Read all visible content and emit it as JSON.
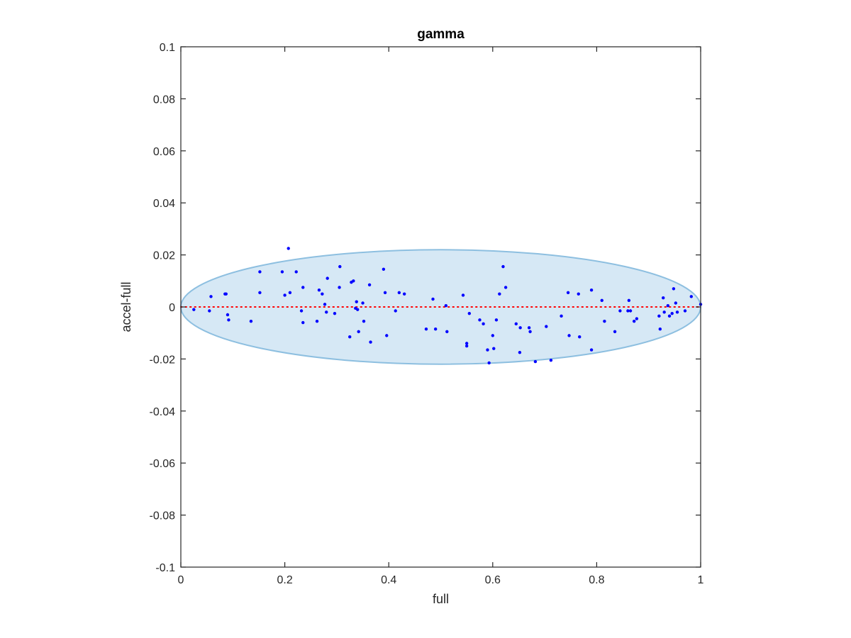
{
  "chart_data": {
    "type": "scatter",
    "title": "gamma",
    "xlabel": "full",
    "ylabel": "accel-full",
    "xlim": [
      0,
      1
    ],
    "ylim": [
      -0.1,
      0.1
    ],
    "xticks": [
      0,
      0.2,
      0.4,
      0.6,
      0.8,
      1
    ],
    "xtick_labels": [
      "0",
      "0.2",
      "0.4",
      "0.6",
      "0.8",
      "1"
    ],
    "yticks": [
      -0.1,
      -0.08,
      -0.06,
      -0.04,
      -0.02,
      0,
      0.02,
      0.04,
      0.06,
      0.08,
      0.1
    ],
    "ytick_labels": [
      "-0.1",
      "-0.08",
      "-0.06",
      "-0.04",
      "-0.02",
      "0",
      "0.02",
      "0.04",
      "0.06",
      "0.08",
      "0.1"
    ],
    "grid": false,
    "reference_line": {
      "y": 0,
      "color": "#ff0000",
      "style": "dotted"
    },
    "ellipse": {
      "cx": 0.5,
      "cy": 0,
      "rx": 0.5,
      "ry": 0.022,
      "fill": "#d6e8f5",
      "stroke": "#8dbfe0"
    },
    "series": [
      {
        "color": "#0000ff",
        "points": [
          [
            0.025,
            -0.001
          ],
          [
            0.055,
            -0.0015
          ],
          [
            0.058,
            0.004
          ],
          [
            0.085,
            0.005
          ],
          [
            0.087,
            0.005
          ],
          [
            0.09,
            -0.003
          ],
          [
            0.092,
            -0.005
          ],
          [
            0.135,
            -0.0055
          ],
          [
            0.152,
            0.0135
          ],
          [
            0.152,
            0.0055
          ],
          [
            0.195,
            0.0135
          ],
          [
            0.2,
            0.0045
          ],
          [
            0.207,
            0.0225
          ],
          [
            0.21,
            0.0055
          ],
          [
            0.222,
            0.0135
          ],
          [
            0.232,
            -0.0015
          ],
          [
            0.235,
            0.0075
          ],
          [
            0.235,
            -0.006
          ],
          [
            0.262,
            -0.0055
          ],
          [
            0.266,
            0.0065
          ],
          [
            0.272,
            0.005
          ],
          [
            0.277,
            0.001
          ],
          [
            0.28,
            -0.002
          ],
          [
            0.282,
            0.011
          ],
          [
            0.296,
            -0.0025
          ],
          [
            0.305,
            0.0075
          ],
          [
            0.306,
            0.0155
          ],
          [
            0.325,
            -0.0115
          ],
          [
            0.328,
            0.0095
          ],
          [
            0.332,
            0.01
          ],
          [
            0.336,
            -0.0005
          ],
          [
            0.338,
            0.002
          ],
          [
            0.34,
            -0.001
          ],
          [
            0.342,
            -0.0095
          ],
          [
            0.35,
            0.0015
          ],
          [
            0.352,
            -0.0055
          ],
          [
            0.363,
            0.0085
          ],
          [
            0.365,
            -0.0135
          ],
          [
            0.39,
            0.0145
          ],
          [
            0.393,
            0.0055
          ],
          [
            0.396,
            -0.011
          ],
          [
            0.413,
            -0.0015
          ],
          [
            0.42,
            0.0055
          ],
          [
            0.43,
            0.005
          ],
          [
            0.472,
            -0.0085
          ],
          [
            0.485,
            0.003
          ],
          [
            0.49,
            -0.0085
          ],
          [
            0.51,
            0.0005
          ],
          [
            0.512,
            -0.0095
          ],
          [
            0.543,
            0.0045
          ],
          [
            0.55,
            -0.014
          ],
          [
            0.55,
            -0.015
          ],
          [
            0.555,
            -0.0025
          ],
          [
            0.575,
            -0.005
          ],
          [
            0.582,
            -0.0065
          ],
          [
            0.59,
            -0.0165
          ],
          [
            0.593,
            -0.0215
          ],
          [
            0.6,
            -0.011
          ],
          [
            0.602,
            -0.016
          ],
          [
            0.607,
            -0.005
          ],
          [
            0.613,
            0.005
          ],
          [
            0.62,
            0.0155
          ],
          [
            0.625,
            0.0075
          ],
          [
            0.645,
            -0.0065
          ],
          [
            0.652,
            -0.0175
          ],
          [
            0.653,
            -0.008
          ],
          [
            0.67,
            -0.008
          ],
          [
            0.672,
            -0.0095
          ],
          [
            0.682,
            -0.021
          ],
          [
            0.703,
            -0.0075
          ],
          [
            0.712,
            -0.0205
          ],
          [
            0.732,
            -0.0035
          ],
          [
            0.745,
            0.0055
          ],
          [
            0.747,
            -0.011
          ],
          [
            0.765,
            0.005
          ],
          [
            0.767,
            -0.0115
          ],
          [
            0.79,
            0.0065
          ],
          [
            0.79,
            -0.0165
          ],
          [
            0.81,
            0.0025
          ],
          [
            0.815,
            -0.0055
          ],
          [
            0.835,
            -0.0095
          ],
          [
            0.845,
            -0.0015
          ],
          [
            0.86,
            -0.0015
          ],
          [
            0.862,
            0.0025
          ],
          [
            0.865,
            -0.0015
          ],
          [
            0.872,
            -0.0055
          ],
          [
            0.877,
            -0.0045
          ],
          [
            0.92,
            -0.0035
          ],
          [
            0.922,
            -0.0085
          ],
          [
            0.928,
            0.0035
          ],
          [
            0.93,
            -0.002
          ],
          [
            0.937,
            0.0005
          ],
          [
            0.94,
            -0.0035
          ],
          [
            0.945,
            -0.0025
          ],
          [
            0.948,
            0.007
          ],
          [
            0.952,
            0.0015
          ],
          [
            0.955,
            -0.002
          ],
          [
            0.97,
            -0.0015
          ],
          [
            0.982,
            0.004
          ],
          [
            1.0,
            0.001
          ]
        ]
      }
    ]
  }
}
